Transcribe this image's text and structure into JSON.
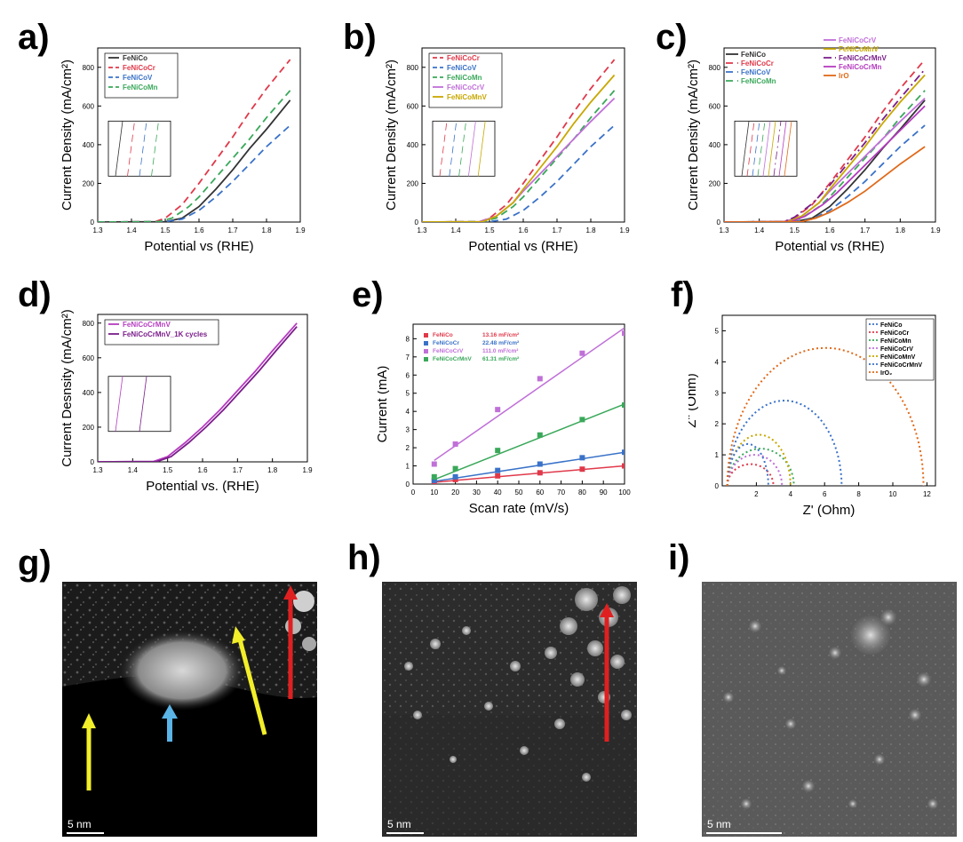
{
  "colors": {
    "FeNiCo": "#333333",
    "FeNiCoCr": "#e0394a",
    "FeNiCoV": "#3a72c8",
    "FeNiCoMn": "#3aa85a",
    "FeNiCoCrV": "#c070d8",
    "FeNiCoMnV": "#c8a800",
    "FeNiCoCrMnV": "#7a1d8a",
    "FeNiCoCrMn": "#b63cc0",
    "IrO": "#e06a1a",
    "FeNiCoCrMnV_1K": "#9a2d9a"
  },
  "panels": {
    "a": {
      "label": "a)"
    },
    "b": {
      "label": "b)"
    },
    "c": {
      "label": "c)"
    },
    "d": {
      "label": "d)"
    },
    "e": {
      "label": "e)"
    },
    "f": {
      "label": "f)"
    },
    "g": {
      "label": "g)",
      "scale": "5 nm"
    },
    "h": {
      "label": "h)",
      "scale": "5 nm"
    },
    "i": {
      "label": "i)",
      "scale": "5 nm"
    }
  },
  "chart_data": [
    {
      "id": "a",
      "type": "line",
      "xlabel": "Potential vs (RHE)",
      "ylabel": "Current Density (mA/cm²)",
      "xlim": [
        1.3,
        1.9
      ],
      "ylim": [
        0,
        900
      ],
      "xticks": [
        "1.3",
        "1.4",
        "1.5",
        "1.6",
        "1.7",
        "1.8",
        "1.9"
      ],
      "yticks": [
        "0",
        "200",
        "400",
        "600",
        "800"
      ],
      "legend": "top-left",
      "series": [
        {
          "name": "FeNiCo",
          "key": "FeNiCo",
          "dash": "solid",
          "x": [
            1.3,
            1.5,
            1.55,
            1.6,
            1.65,
            1.7,
            1.75,
            1.8,
            1.87
          ],
          "y": [
            0,
            2,
            20,
            80,
            170,
            270,
            380,
            480,
            630
          ]
        },
        {
          "name": "FeNiCoCr",
          "key": "FeNiCoCr",
          "dash": "dashed",
          "x": [
            1.3,
            1.47,
            1.5,
            1.55,
            1.6,
            1.65,
            1.7,
            1.75,
            1.8,
            1.87
          ],
          "y": [
            0,
            2,
            20,
            90,
            200,
            320,
            440,
            570,
            690,
            840
          ]
        },
        {
          "name": "FeNiCoV",
          "key": "FeNiCoV",
          "dash": "dashed",
          "x": [
            1.3,
            1.5,
            1.55,
            1.6,
            1.65,
            1.7,
            1.75,
            1.8,
            1.87
          ],
          "y": [
            0,
            2,
            15,
            60,
            130,
            210,
            300,
            390,
            500
          ]
        },
        {
          "name": "FeNiCoMn",
          "key": "FeNiCoMn",
          "dash": "dashed",
          "x": [
            1.3,
            1.48,
            1.52,
            1.57,
            1.6,
            1.65,
            1.7,
            1.75,
            1.8,
            1.87
          ],
          "y": [
            0,
            2,
            20,
            80,
            130,
            230,
            330,
            430,
            540,
            680
          ]
        }
      ]
    },
    {
      "id": "b",
      "type": "line",
      "xlabel": "Potential vs (RHE)",
      "ylabel": "Current Density (mA/cm²)",
      "xlim": [
        1.3,
        1.9
      ],
      "ylim": [
        0,
        900
      ],
      "xticks": [
        "1.3",
        "1.4",
        "1.5",
        "1.6",
        "1.7",
        "1.8",
        "1.9"
      ],
      "yticks": [
        "0",
        "200",
        "400",
        "600",
        "800"
      ],
      "legend": "top-left",
      "series": [
        {
          "name": "FeNiCoCr",
          "key": "FeNiCoCr",
          "dash": "dashed",
          "x": [
            1.3,
            1.47,
            1.5,
            1.55,
            1.6,
            1.65,
            1.7,
            1.75,
            1.8,
            1.87
          ],
          "y": [
            0,
            2,
            20,
            90,
            200,
            320,
            440,
            570,
            690,
            840
          ]
        },
        {
          "name": "FeNiCoV",
          "key": "FeNiCoV",
          "dash": "dashed",
          "x": [
            1.3,
            1.5,
            1.55,
            1.6,
            1.65,
            1.7,
            1.75,
            1.8,
            1.87
          ],
          "y": [
            0,
            2,
            15,
            60,
            130,
            210,
            300,
            390,
            500
          ]
        },
        {
          "name": "FeNiCoMn",
          "key": "FeNiCoMn",
          "dash": "dashed",
          "x": [
            1.3,
            1.48,
            1.52,
            1.57,
            1.6,
            1.65,
            1.7,
            1.75,
            1.8,
            1.87
          ],
          "y": [
            0,
            2,
            20,
            80,
            130,
            230,
            330,
            430,
            540,
            680
          ]
        },
        {
          "name": "FeNiCoCrV",
          "key": "FeNiCoCrV",
          "dash": "solid",
          "x": [
            1.3,
            1.47,
            1.52,
            1.57,
            1.6,
            1.65,
            1.7,
            1.75,
            1.8,
            1.87
          ],
          "y": [
            0,
            2,
            30,
            100,
            160,
            250,
            340,
            430,
            520,
            640
          ]
        },
        {
          "name": "FeNiCoMnV",
          "key": "FeNiCoMnV",
          "dash": "solid",
          "x": [
            1.3,
            1.48,
            1.52,
            1.57,
            1.6,
            1.65,
            1.7,
            1.75,
            1.8,
            1.87
          ],
          "y": [
            0,
            2,
            30,
            100,
            170,
            280,
            390,
            510,
            620,
            760
          ]
        }
      ]
    },
    {
      "id": "c",
      "type": "line",
      "xlabel": "Potential vs (RHE)",
      "ylabel": "Current Density (mA/cm²)",
      "xlim": [
        1.3,
        1.9
      ],
      "ylim": [
        0,
        900
      ],
      "xticks": [
        "1.3",
        "1.4",
        "1.5",
        "1.6",
        "1.7",
        "1.8",
        "1.9"
      ],
      "yticks": [
        "0",
        "200",
        "400",
        "600",
        "800"
      ],
      "legend": "top",
      "series": [
        {
          "name": "FeNiCo",
          "key": "FeNiCo",
          "dash": "solid",
          "x": [
            1.3,
            1.5,
            1.55,
            1.6,
            1.65,
            1.7,
            1.75,
            1.8,
            1.87
          ],
          "y": [
            0,
            2,
            20,
            80,
            170,
            270,
            380,
            480,
            630
          ]
        },
        {
          "name": "FeNiCoCr",
          "key": "FeNiCoCr",
          "dash": "dashed",
          "x": [
            1.3,
            1.47,
            1.5,
            1.55,
            1.6,
            1.65,
            1.7,
            1.75,
            1.8,
            1.87
          ],
          "y": [
            0,
            2,
            20,
            90,
            200,
            320,
            440,
            570,
            690,
            840
          ]
        },
        {
          "name": "FeNiCoV",
          "key": "FeNiCoV",
          "dash": "dashed",
          "x": [
            1.3,
            1.5,
            1.55,
            1.6,
            1.65,
            1.7,
            1.75,
            1.8,
            1.87
          ],
          "y": [
            0,
            2,
            15,
            60,
            130,
            210,
            300,
            390,
            500
          ]
        },
        {
          "name": "FeNiCoMn",
          "key": "FeNiCoMn",
          "dash": "dashed",
          "x": [
            1.3,
            1.48,
            1.52,
            1.57,
            1.6,
            1.65,
            1.7,
            1.75,
            1.8,
            1.87
          ],
          "y": [
            0,
            2,
            20,
            80,
            130,
            230,
            330,
            430,
            540,
            680
          ]
        },
        {
          "name": "FeNiCoCrV",
          "key": "FeNiCoCrV",
          "dash": "solid",
          "x": [
            1.3,
            1.47,
            1.52,
            1.57,
            1.6,
            1.65,
            1.7,
            1.75,
            1.8,
            1.87
          ],
          "y": [
            0,
            2,
            30,
            100,
            160,
            250,
            340,
            430,
            520,
            640
          ]
        },
        {
          "name": "FeNiCoMnV",
          "key": "FeNiCoMnV",
          "dash": "solid",
          "x": [
            1.3,
            1.48,
            1.52,
            1.57,
            1.6,
            1.65,
            1.7,
            1.75,
            1.8,
            1.87
          ],
          "y": [
            0,
            2,
            30,
            100,
            170,
            280,
            390,
            510,
            620,
            760
          ]
        },
        {
          "name": "FeNiCoCrMnV",
          "key": "FeNiCoCrMnV",
          "dash": "dashdot",
          "x": [
            1.3,
            1.47,
            1.5,
            1.55,
            1.6,
            1.65,
            1.7,
            1.75,
            1.8,
            1.87
          ],
          "y": [
            0,
            2,
            25,
            95,
            190,
            300,
            410,
            530,
            640,
            790
          ]
        },
        {
          "name": "FeNiCoCrMn",
          "key": "FeNiCoCrMn",
          "dash": "solid",
          "x": [
            1.3,
            1.49,
            1.53,
            1.58,
            1.62,
            1.67,
            1.72,
            1.77,
            1.82,
            1.87
          ],
          "y": [
            0,
            2,
            30,
            90,
            150,
            240,
            330,
            420,
            510,
            600
          ]
        },
        {
          "name": "IrO",
          "key": "IrO",
          "dash": "solid",
          "x": [
            1.3,
            1.52,
            1.56,
            1.6,
            1.65,
            1.7,
            1.75,
            1.8,
            1.87
          ],
          "y": [
            0,
            2,
            20,
            50,
            100,
            160,
            230,
            300,
            390
          ]
        }
      ]
    },
    {
      "id": "d",
      "type": "line",
      "xlabel": "Potential vs. (RHE)",
      "ylabel": "Current Desnsity (mA/cm²)",
      "xlim": [
        1.3,
        1.9
      ],
      "ylim": [
        0,
        850
      ],
      "xticks": [
        "1.3",
        "1.4",
        "1.5",
        "1.6",
        "1.7",
        "1.8",
        "1.9"
      ],
      "yticks": [
        "0",
        "200",
        "400",
        "600",
        "800"
      ],
      "legend": "top-left",
      "series": [
        {
          "name": "FeNiCoCrMnV",
          "key": "FeNiCoCrMn",
          "dash": "solid",
          "x": [
            1.3,
            1.46,
            1.5,
            1.55,
            1.6,
            1.65,
            1.7,
            1.75,
            1.8,
            1.87
          ],
          "y": [
            0,
            2,
            30,
            110,
            200,
            300,
            410,
            520,
            640,
            800
          ]
        },
        {
          "name": "FeNiCoCrMnV_1K cycles",
          "key": "FeNiCoCrMnV",
          "dash": "solid",
          "x": [
            1.3,
            1.47,
            1.51,
            1.56,
            1.61,
            1.66,
            1.71,
            1.76,
            1.81,
            1.87
          ],
          "y": [
            0,
            2,
            30,
            110,
            200,
            300,
            410,
            520,
            640,
            780
          ]
        }
      ]
    },
    {
      "id": "e",
      "type": "scatter",
      "xlabel": "Scan rate (mV/s)",
      "ylabel": "Current (mA)",
      "xlim": [
        0,
        100
      ],
      "ylim": [
        0,
        8.8
      ],
      "xticks": [
        "0",
        "10",
        "20",
        "30",
        "40",
        "50",
        "60",
        "70",
        "80",
        "90",
        "100"
      ],
      "yticks": [
        "0",
        "1",
        "2",
        "3",
        "4",
        "5",
        "6",
        "7",
        "8"
      ],
      "legend": "top-left",
      "series": [
        {
          "name": "FeNiCo",
          "value": "13.16 mF/cm²",
          "key": "FeNiCoCr",
          "x": [
            10,
            20,
            40,
            60,
            80,
            100
          ],
          "y": [
            0.12,
            0.25,
            0.45,
            0.62,
            0.82,
            1.0
          ],
          "fit": [
            0.1,
            1.0
          ]
        },
        {
          "name": "FeNiCoCr",
          "value": "22.48 mF/cm²",
          "key": "FeNiCoV",
          "x": [
            10,
            20,
            40,
            60,
            80,
            100
          ],
          "y": [
            0.2,
            0.4,
            0.75,
            1.1,
            1.45,
            1.75
          ],
          "fit": [
            0.15,
            1.75
          ]
        },
        {
          "name": "FeNiCoCrV",
          "value": "111.0 mF/cm²",
          "key": "FeNiCoCrV",
          "x": [
            10,
            20,
            40,
            60,
            80,
            100
          ],
          "y": [
            1.1,
            2.2,
            4.1,
            5.8,
            7.2,
            8.3
          ],
          "fit": [
            1.3,
            8.6
          ]
        },
        {
          "name": "FeNiCoCrMnV",
          "value": "61.31 mF/cm²",
          "key": "FeNiCoMn",
          "x": [
            10,
            20,
            40,
            60,
            80,
            100
          ],
          "y": [
            0.4,
            0.85,
            1.85,
            2.7,
            3.55,
            4.35
          ],
          "fit": [
            0.25,
            4.4
          ]
        }
      ]
    },
    {
      "id": "f",
      "type": "line",
      "xlabel": "Z' (Ohm)",
      "ylabel": "Z'' (Ohm)",
      "xlim": [
        0,
        12.5
      ],
      "ylim": [
        0,
        5.5
      ],
      "xticks": [
        "2",
        "4",
        "6",
        "8",
        "10",
        "12"
      ],
      "yticks": [
        "0",
        "1",
        "2",
        "3",
        "4",
        "5"
      ],
      "legend": "top-right",
      "series": [
        {
          "name": "FeNiCo",
          "key": "FeNiCoV",
          "dash": "dotted",
          "arc": [
            0.3,
            7.0,
            2.75
          ]
        },
        {
          "name": "FeNiCoCr",
          "key": "FeNiCoCr",
          "dash": "dotted",
          "arc": [
            0.3,
            3.0,
            0.7
          ]
        },
        {
          "name": "FeNiCoMn",
          "key": "FeNiCoMn",
          "dash": "dotted",
          "arc": [
            0.3,
            4.2,
            1.2
          ]
        },
        {
          "name": "FeNiCoCrV",
          "key": "FeNiCoCrV",
          "dash": "dotted",
          "arc": [
            0.3,
            3.5,
            1.0
          ]
        },
        {
          "name": "FeNiCoMnV",
          "key": "FeNiCoMnV",
          "dash": "dotted",
          "arc": [
            0.3,
            4.0,
            1.65
          ]
        },
        {
          "name": "FeNiCoCrMnV",
          "key": "FeNiCoV",
          "dash": "dotted",
          "arc": [
            0.3,
            2.7,
            1.35
          ]
        },
        {
          "name": "IrO₂",
          "key": "IrO",
          "dash": "dotted",
          "arc": [
            0.3,
            11.8,
            4.45
          ]
        }
      ]
    }
  ]
}
